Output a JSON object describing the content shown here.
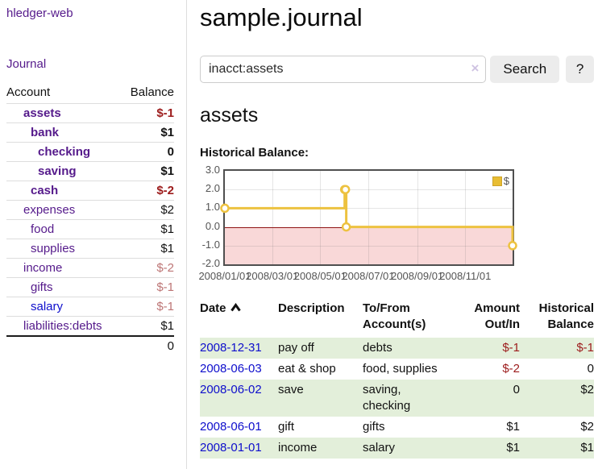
{
  "app": {
    "brand": "hledger-web",
    "nav_journal": "Journal"
  },
  "sidebar": {
    "accounts_header": {
      "account": "Account",
      "balance": "Balance"
    },
    "accounts": [
      {
        "label": "assets",
        "depth": 1,
        "emphasized": true,
        "balance": "$-1",
        "balance_color": "strong-negative",
        "link_style": "purple"
      },
      {
        "label": "bank",
        "depth": 2,
        "emphasized": true,
        "balance": "$1",
        "balance_color": "normal",
        "link_style": "purple"
      },
      {
        "label": "checking",
        "depth": 3,
        "emphasized": true,
        "balance": "0",
        "balance_color": "normal",
        "link_style": "purple"
      },
      {
        "label": "saving",
        "depth": 3,
        "emphasized": true,
        "balance": "$1",
        "balance_color": "normal",
        "link_style": "purple"
      },
      {
        "label": "cash",
        "depth": 2,
        "emphasized": true,
        "balance": "$-2",
        "balance_color": "strong-negative",
        "link_style": "purple"
      },
      {
        "label": "expenses",
        "depth": 1,
        "emphasized": false,
        "balance": "$2",
        "balance_color": "normal",
        "link_style": "purple"
      },
      {
        "label": "food",
        "depth": 2,
        "emphasized": false,
        "balance": "$1",
        "balance_color": "normal",
        "link_style": "purple"
      },
      {
        "label": "supplies",
        "depth": 2,
        "emphasized": false,
        "balance": "$1",
        "balance_color": "normal",
        "link_style": "purple"
      },
      {
        "label": "income",
        "depth": 1,
        "emphasized": false,
        "balance": "$-2",
        "balance_color": "soft-negative",
        "link_style": "purple"
      },
      {
        "label": "gifts",
        "depth": 2,
        "emphasized": false,
        "balance": "$-1",
        "balance_color": "soft-negative",
        "link_style": "purple"
      },
      {
        "label": "salary",
        "depth": 2,
        "emphasized": false,
        "balance": "$-1",
        "balance_color": "soft-negative",
        "link_style": "blue"
      },
      {
        "label": "liabilities:debts",
        "depth": 1,
        "emphasized": false,
        "balance": "$1",
        "balance_color": "normal",
        "link_style": "purple"
      }
    ],
    "total": "0"
  },
  "main": {
    "title": "sample.journal",
    "search": {
      "value": "inacct:assets",
      "clear_icon": "×",
      "button_label": "Search",
      "help_button_label": "?"
    },
    "account_heading": "assets",
    "chart_label": "Historical Balance:"
  },
  "chart_data": {
    "type": "line",
    "step": true,
    "title": "Historical Balance",
    "series": [
      {
        "name": "$",
        "color": "#edc240",
        "x": [
          "2008-01-01",
          "2008-06-01",
          "2008-06-02",
          "2008-06-03",
          "2008-12-31"
        ],
        "values": [
          1,
          2,
          2,
          0,
          -1
        ]
      }
    ],
    "xrange": [
      "2008-01-01",
      "2008-12-31"
    ],
    "ylim": [
      -2,
      3
    ],
    "yticks": [
      "3.0",
      "2.0",
      "1.0",
      "0.0",
      "-1.0",
      "-2.0"
    ],
    "ytick_values": [
      3,
      2,
      1,
      0,
      -1,
      -2
    ],
    "xticks": [
      "2008/01/01",
      "2008/03/01",
      "2008/05/01",
      "2008/07/01",
      "2008/09/01",
      "2008/11/01"
    ],
    "xtick_dates": [
      "2008-01-01",
      "2008-03-01",
      "2008-05-01",
      "2008-07-01",
      "2008-09-01",
      "2008-11-01"
    ],
    "grid": true,
    "legend": {
      "label": "$",
      "position": "top-right",
      "box_color": "#e8bd33"
    },
    "negative_region_color": "#f9d8d8",
    "zero_line_color": "#8f1515",
    "marker": {
      "fill": "#ffffff",
      "radius": 4.5
    }
  },
  "transactions": {
    "headers": {
      "date": "Date",
      "description": "Description",
      "accounts": "To/From Account(s)",
      "amount": "Amount Out/In",
      "balance": "Historical Balance"
    },
    "sort": {
      "column": "Date",
      "direction": "ascending"
    },
    "rows": [
      {
        "date": "2008-12-31",
        "description": "pay off",
        "accounts": "debts",
        "amount": "$-1",
        "amount_negative": true,
        "balance": "$-1",
        "balance_negative": true
      },
      {
        "date": "2008-06-03",
        "description": "eat & shop",
        "accounts": "food, supplies",
        "amount": "$-2",
        "amount_negative": true,
        "balance": "0",
        "balance_negative": false
      },
      {
        "date": "2008-06-02",
        "description": "save",
        "accounts": "saving, checking",
        "amount": "0",
        "amount_negative": false,
        "balance": "$2",
        "balance_negative": false
      },
      {
        "date": "2008-06-01",
        "description": "gift",
        "accounts": "gifts",
        "amount": "$1",
        "amount_negative": false,
        "balance": "$2",
        "balance_negative": false
      },
      {
        "date": "2008-01-01",
        "description": "income",
        "accounts": "salary",
        "amount": "$1",
        "amount_negative": false,
        "balance": "$1",
        "balance_negative": false
      }
    ]
  },
  "colors": {
    "link_purple": "#551a8b",
    "link_blue": "#0e0ecc",
    "negative_strong": "#9c1b1b",
    "negative_soft": "#bd7575",
    "row_stripe_green": "#e3efda",
    "chart_line": "#edc240"
  }
}
